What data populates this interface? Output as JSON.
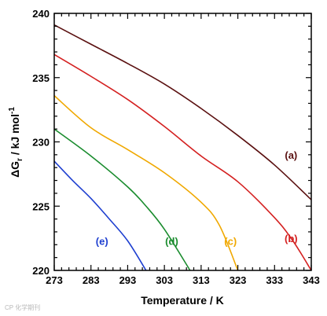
{
  "chart_data": {
    "type": "line",
    "xlabel": "Temperature / K",
    "ylabel": "ΔG",
    "ylabel_sub": "r",
    "ylabel_unit": " / kJ mol",
    "ylabel_sup": "-1",
    "xlim": [
      273,
      343
    ],
    "ylim": [
      220,
      240
    ],
    "xticks": [
      273,
      283,
      293,
      303,
      313,
      323,
      333,
      343
    ],
    "yticks": [
      220,
      225,
      230,
      235,
      240
    ],
    "grid": false,
    "series": [
      {
        "name": "(a)",
        "color": "#5a1010",
        "x": [
          273,
          283,
          293,
          303,
          313,
          323,
          333,
          343
        ],
        "y": [
          239.1,
          237.6,
          236.1,
          234.5,
          232.6,
          230.5,
          228.2,
          225.5
        ]
      },
      {
        "name": "(b)",
        "color": "#d42020",
        "x": [
          273,
          283,
          293,
          303,
          313,
          323,
          333,
          338,
          343
        ],
        "y": [
          236.8,
          235.1,
          233.3,
          231.2,
          228.9,
          226.9,
          224.1,
          222.3,
          220.0
        ]
      },
      {
        "name": "(c)",
        "color": "#f0a800",
        "x": [
          273,
          283,
          293,
          303,
          313,
          318,
          323
        ],
        "y": [
          233.6,
          231.1,
          229.4,
          227.6,
          225.3,
          223.5,
          220.0
        ]
      },
      {
        "name": "(d)",
        "color": "#1a8c2e",
        "x": [
          273,
          283,
          293,
          298,
          303,
          310
        ],
        "y": [
          231.0,
          228.9,
          226.5,
          225.0,
          223.2,
          220.0
        ]
      },
      {
        "name": "(e)",
        "color": "#1e3fd0",
        "x": [
          273,
          278,
          283,
          288,
          293,
          298
        ],
        "y": [
          228.5,
          227.0,
          225.6,
          224.0,
          222.3,
          220.0
        ]
      }
    ],
    "series_labels": [
      {
        "text": "(a)",
        "x": 337.5,
        "y": 228.7
      },
      {
        "text": "(b)",
        "x": 337.5,
        "y": 222.2
      },
      {
        "text": "(c)",
        "x": 321,
        "y": 222.0
      },
      {
        "text": "(d)",
        "x": 305,
        "y": 222.0
      },
      {
        "text": "(e)",
        "x": 286,
        "y": 222.0
      }
    ]
  },
  "watermark": "CP 化学期刊"
}
